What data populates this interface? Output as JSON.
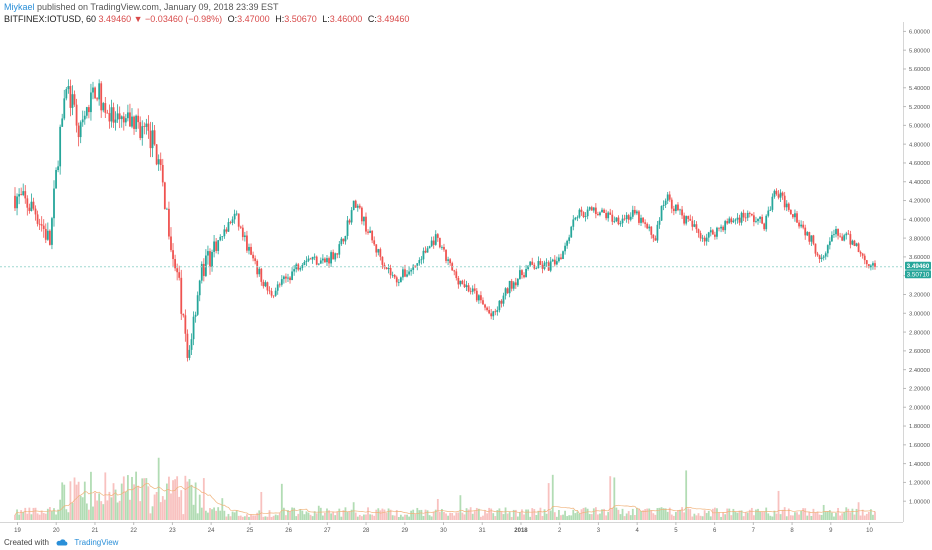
{
  "header": {
    "author": "Miykael",
    "published_text": " published on TradingView.com, January 09, 2018 23:39 EST",
    "symbol": "BITFINEX:IOTUSD, 60",
    "last": "3.49460",
    "arrow": "▼",
    "change": "−0.03460 (−0.98%)",
    "o_label": "O:",
    "o_value": "3.47000",
    "h_label": "H:",
    "h_value": "3.50670",
    "l_label": "L:",
    "l_value": "3.46000",
    "c_label": "C:",
    "c_value": "3.49460"
  },
  "footer": {
    "created_with": "Created with",
    "brand": "TradingView"
  },
  "colors": {
    "up": "#26a69a",
    "down": "#ef5350",
    "up_vol": "#a5d6a7",
    "down_vol": "#f7b6b4",
    "last_price_badge": "#26a69a",
    "price_line": "#9fd8d1"
  },
  "chart_data": {
    "type": "candlestick",
    "symbol": "BITFINEX:IOTUSD",
    "interval": "60",
    "y_axis": {
      "min": 0.8,
      "max": 6.1,
      "tick_labels": [
        "6.00000",
        "5.80000",
        "5.60000",
        "5.40000",
        "5.20000",
        "5.00000",
        "4.80000",
        "4.60000",
        "4.40000",
        "4.20000",
        "4.00000",
        "3.80000",
        "3.60000",
        "3.40000",
        "3.20000",
        "3.00000",
        "2.80000",
        "2.60000",
        "2.40000",
        "2.20000",
        "2.00000",
        "1.80000",
        "1.60000",
        "1.40000",
        "1.20000",
        "1.00000"
      ]
    },
    "x_axis": {
      "tick_labels": [
        "19",
        "20",
        "21",
        "22",
        "23",
        "24",
        "25",
        "26",
        "27",
        "28",
        "29",
        "30",
        "31",
        "2018",
        "2",
        "3",
        "4",
        "5",
        "6",
        "7",
        "8",
        "9",
        "10"
      ],
      "bold_label": "2018"
    },
    "last_price_label": "3.49460",
    "last_price_sub_label": "3.50710",
    "last_price": 3.4946,
    "anchors": [
      {
        "d": 0.0,
        "p": 4.25
      },
      {
        "d": 0.4,
        "p": 4.1
      },
      {
        "d": 0.7,
        "p": 3.75
      },
      {
        "d": 1.0,
        "p": 5.5
      },
      {
        "d": 1.3,
        "p": 4.9
      },
      {
        "d": 1.6,
        "p": 5.4
      },
      {
        "d": 2.0,
        "p": 5.0
      },
      {
        "d": 2.4,
        "p": 5.05
      },
      {
        "d": 2.8,
        "p": 4.8
      },
      {
        "d": 3.0,
        "p": 4.2
      },
      {
        "d": 3.3,
        "p": 3.2
      },
      {
        "d": 3.45,
        "p": 2.5
      },
      {
        "d": 3.7,
        "p": 3.4
      },
      {
        "d": 4.0,
        "p": 3.7
      },
      {
        "d": 4.4,
        "p": 4.05
      },
      {
        "d": 4.8,
        "p": 3.5
      },
      {
        "d": 5.1,
        "p": 3.2
      },
      {
        "d": 5.4,
        "p": 3.35
      },
      {
        "d": 5.8,
        "p": 3.6
      },
      {
        "d": 6.2,
        "p": 3.55
      },
      {
        "d": 6.5,
        "p": 3.7
      },
      {
        "d": 6.8,
        "p": 4.2
      },
      {
        "d": 7.2,
        "p": 3.7
      },
      {
        "d": 7.6,
        "p": 3.35
      },
      {
        "d": 8.0,
        "p": 3.5
      },
      {
        "d": 8.4,
        "p": 3.8
      },
      {
        "d": 8.8,
        "p": 3.4
      },
      {
        "d": 9.2,
        "p": 3.2
      },
      {
        "d": 9.55,
        "p": 2.95
      },
      {
        "d": 9.9,
        "p": 3.3
      },
      {
        "d": 10.3,
        "p": 3.5
      },
      {
        "d": 10.7,
        "p": 3.5
      },
      {
        "d": 10.95,
        "p": 3.65
      },
      {
        "d": 11.2,
        "p": 4.05
      },
      {
        "d": 11.6,
        "p": 4.1
      },
      {
        "d": 12.0,
        "p": 4.0
      },
      {
        "d": 12.4,
        "p": 4.05
      },
      {
        "d": 12.8,
        "p": 3.8
      },
      {
        "d": 13.0,
        "p": 4.25
      },
      {
        "d": 13.4,
        "p": 4.0
      },
      {
        "d": 13.8,
        "p": 3.8
      },
      {
        "d": 14.2,
        "p": 3.95
      },
      {
        "d": 14.6,
        "p": 4.05
      },
      {
        "d": 15.0,
        "p": 3.95
      },
      {
        "d": 15.2,
        "p": 4.3
      },
      {
        "d": 15.6,
        "p": 4.05
      },
      {
        "d": 15.9,
        "p": 3.8
      },
      {
        "d": 16.1,
        "p": 3.6
      },
      {
        "d": 16.4,
        "p": 3.85
      },
      {
        "d": 16.8,
        "p": 3.75
      },
      {
        "d": 17.0,
        "p": 3.55
      },
      {
        "d": 17.2,
        "p": 3.52
      }
    ]
  }
}
